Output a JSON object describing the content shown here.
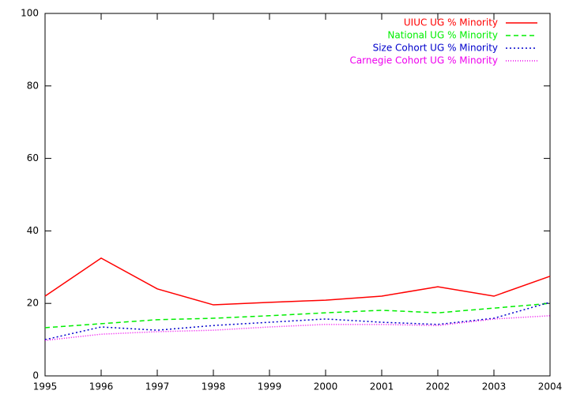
{
  "chart_data": {
    "type": "line",
    "x": [
      1995,
      1996,
      1997,
      1998,
      1999,
      2000,
      2001,
      2002,
      2003,
      2004
    ],
    "series": [
      {
        "name": "UIUC UG % Minority",
        "color": "#ff0000",
        "dash": "solid",
        "values": [
          22.0,
          32.5,
          24.0,
          19.6,
          20.3,
          20.9,
          22.0,
          24.6,
          22.0,
          27.5
        ]
      },
      {
        "name": "National UG % Minority",
        "color": "#00ee00",
        "dash": "dashed",
        "values": [
          13.3,
          14.4,
          15.5,
          15.9,
          16.6,
          17.4,
          18.1,
          17.4,
          18.7,
          20.0
        ]
      },
      {
        "name": "Size Cohort UG % Minority",
        "color": "#0000cc",
        "dash": "dotted",
        "values": [
          10.0,
          13.5,
          12.6,
          13.9,
          14.8,
          15.7,
          14.8,
          14.2,
          15.9,
          20.3
        ]
      },
      {
        "name": "Carnegie Cohort UG % Minority",
        "color": "#ee00ee",
        "dash": "fine-dotted",
        "values": [
          9.8,
          11.5,
          12.2,
          12.6,
          13.5,
          14.2,
          14.2,
          13.9,
          15.7,
          16.6
        ]
      }
    ],
    "xlim": [
      1995,
      2004
    ],
    "xticks": [
      1995,
      1996,
      1997,
      1998,
      1999,
      2000,
      2001,
      2002,
      2003,
      2004
    ],
    "ylim": [
      0,
      100
    ],
    "yticks": [
      0,
      20,
      40,
      60,
      80,
      100
    ],
    "legend": "top-right",
    "grid": false
  }
}
